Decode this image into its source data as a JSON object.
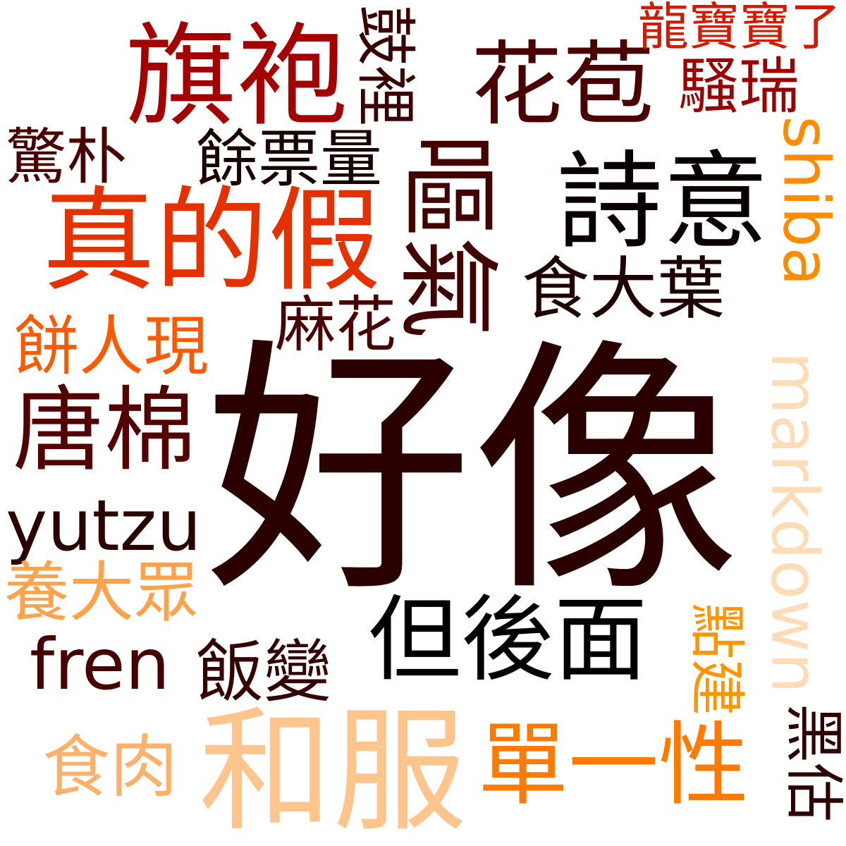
{
  "words": [
    {
      "text": "好像",
      "color": "#2b0000"
    },
    {
      "text": "和服",
      "color": "#ffc58d"
    },
    {
      "text": "旗袍",
      "color": "#a40000"
    },
    {
      "text": "真的假",
      "color": "#e53000"
    },
    {
      "text": "花苞",
      "color": "#4a0000"
    },
    {
      "text": "詩意",
      "color": "#0a0000"
    },
    {
      "text": "唐棉",
      "color": "#520000"
    },
    {
      "text": "但後面",
      "color": "#000000"
    },
    {
      "text": "單一性",
      "color": "#ff7a00"
    },
    {
      "text": "yutzu",
      "color": "#2b0000"
    },
    {
      "text": "fren",
      "color": "#470000"
    },
    {
      "text": "餘票量",
      "color": "#1a0000"
    },
    {
      "text": "食大葉",
      "color": "#1f0000"
    },
    {
      "text": "麻花",
      "color": "#4a0000"
    },
    {
      "text": "餅人現",
      "color": "#ff5a00"
    },
    {
      "text": "養大眾",
      "color": "#ffa24a"
    },
    {
      "text": "飯變",
      "color": "#350000"
    },
    {
      "text": "食肉",
      "color": "#ffb06a"
    },
    {
      "text": "驚朴",
      "color": "#4a0000"
    },
    {
      "text": "騷瑞",
      "color": "#9a0000"
    },
    {
      "text": "龍寶寶了",
      "color": "#d21a00"
    },
    {
      "text": "鼓裡",
      "color": "#3a0000"
    },
    {
      "text": "嘔氣",
      "color": "#420000"
    },
    {
      "text": "shiba",
      "color": "#ff8c00"
    },
    {
      "text": "markdown",
      "color": "#ffdcb8"
    },
    {
      "text": "點建",
      "color": "#ff9500"
    },
    {
      "text": "黑估",
      "color": "#2e0000"
    }
  ]
}
